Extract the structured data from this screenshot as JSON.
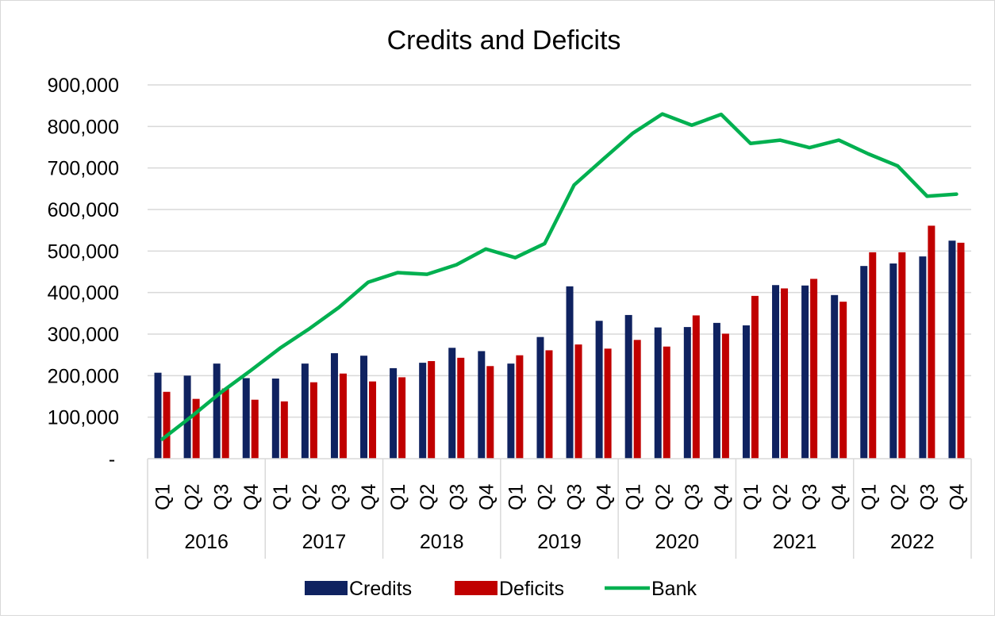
{
  "chart_data": {
    "type": "bar",
    "title": "Credits and Deficits",
    "xlabel": "",
    "ylabel": "",
    "ylim": [
      0,
      900000
    ],
    "yticks": [
      {
        "value": 0,
        "label": "-"
      },
      {
        "value": 100000,
        "label": "100,000"
      },
      {
        "value": 200000,
        "label": "200,000"
      },
      {
        "value": 300000,
        "label": "300,000"
      },
      {
        "value": 400000,
        "label": "400,000"
      },
      {
        "value": 500000,
        "label": "500,000"
      },
      {
        "value": 600000,
        "label": "600,000"
      },
      {
        "value": 700000,
        "label": "700,000"
      },
      {
        "value": 800000,
        "label": "800,000"
      },
      {
        "value": 900000,
        "label": "900,000"
      }
    ],
    "grid": true,
    "legend": "bottom",
    "years": [
      "2016",
      "2017",
      "2018",
      "2019",
      "2020",
      "2021",
      "2022"
    ],
    "quarters": [
      "Q1",
      "Q2",
      "Q3",
      "Q4"
    ],
    "categories": [
      "2016 Q1",
      "2016 Q2",
      "2016 Q3",
      "2016 Q4",
      "2017 Q1",
      "2017 Q2",
      "2017 Q3",
      "2017 Q4",
      "2018 Q1",
      "2018 Q2",
      "2018 Q3",
      "2018 Q4",
      "2019 Q1",
      "2019 Q2",
      "2019 Q3",
      "2019 Q4",
      "2020 Q1",
      "2020 Q2",
      "2020 Q3",
      "2020 Q4",
      "2021 Q1",
      "2021 Q2",
      "2021 Q3",
      "2021 Q4",
      "2022 Q1",
      "2022 Q2",
      "2022 Q3",
      "2022 Q4"
    ],
    "series": [
      {
        "name": "Credits",
        "kind": "bar",
        "color": "#0f2260",
        "values": [
          207000,
          200000,
          229000,
          194000,
          193000,
          229000,
          254000,
          248000,
          218000,
          231000,
          267000,
          259000,
          229000,
          293000,
          415000,
          332000,
          346000,
          316000,
          317000,
          327000,
          321000,
          418000,
          417000,
          394000,
          464000,
          470000,
          487000,
          525000
        ]
      },
      {
        "name": "Deficits",
        "kind": "bar",
        "color": "#c00000",
        "values": [
          161000,
          144000,
          169000,
          142000,
          138000,
          184000,
          205000,
          186000,
          196000,
          235000,
          243000,
          223000,
          249000,
          261000,
          275000,
          265000,
          286000,
          270000,
          345000,
          301000,
          392000,
          410000,
          433000,
          378000,
          497000,
          497000,
          561000,
          520000
        ]
      },
      {
        "name": "Bank",
        "kind": "line",
        "color": "#00b050",
        "values": [
          47000,
          102000,
          160000,
          212000,
          266000,
          313000,
          364000,
          425000,
          448000,
          444000,
          467000,
          505000,
          484000,
          518000,
          659000,
          722000,
          784000,
          830000,
          803000,
          829000,
          759000,
          767000,
          749000,
          767000,
          734000,
          705000,
          632000,
          637000
        ]
      }
    ]
  }
}
